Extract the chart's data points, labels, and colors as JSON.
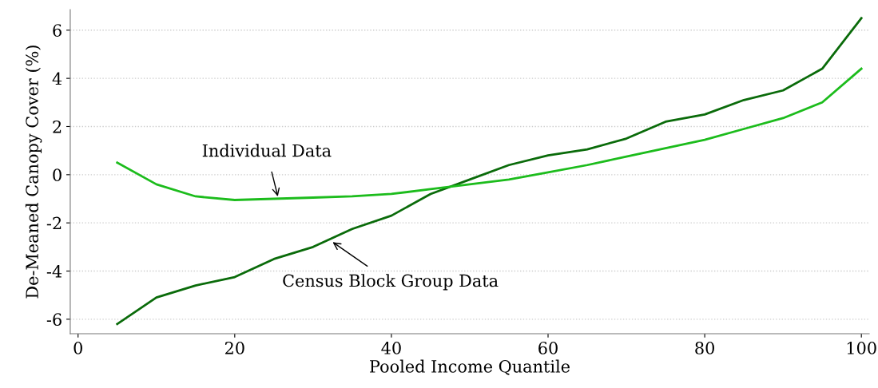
{
  "chart_data": {
    "type": "line",
    "xlabel": "Pooled Income Quantile",
    "ylabel": "De-Meaned Canopy Cover (%)",
    "x": [
      5,
      10,
      15,
      20,
      25,
      30,
      35,
      40,
      45,
      50,
      55,
      60,
      65,
      70,
      75,
      80,
      85,
      90,
      95,
      100
    ],
    "series": [
      {
        "color": "#0a6b0a",
        "values": [
          -6.2,
          -5.1,
          -4.6,
          -4.25,
          -3.5,
          -3.0,
          -2.25,
          -1.7,
          -0.8,
          -0.2,
          0.4,
          0.8,
          1.05,
          1.5,
          2.2,
          2.5,
          3.1,
          3.5,
          4.4,
          6.5
        ]
      },
      {
        "color": "#1cbc1c",
        "values": [
          0.5,
          -0.4,
          -0.9,
          -1.05,
          -1.0,
          -0.95,
          -0.9,
          -0.8,
          -0.6,
          -0.4,
          -0.2,
          0.1,
          0.4,
          0.75,
          1.1,
          1.45,
          1.9,
          2.35,
          3.0,
          4.4
        ]
      }
    ],
    "annotations": [
      {
        "text": "Individual Data",
        "x": 25.5,
        "y": -0.9
      },
      {
        "text": "Census Block Group Data",
        "x": 32.5,
        "y": -2.8
      }
    ],
    "xlim": [
      -1,
      101
    ],
    "xticks": [
      0,
      20,
      40,
      60,
      80,
      100
    ],
    "ylim": [
      -6.6,
      6.85
    ],
    "yticks": [
      {
        "value": -6,
        "label": "-6"
      },
      {
        "value": -4,
        "label": "-4"
      },
      {
        "value": -2,
        "label": "-2"
      },
      0,
      2,
      4,
      6
    ],
    "grid": "y",
    "marker": "none",
    "line_style": "solid"
  }
}
